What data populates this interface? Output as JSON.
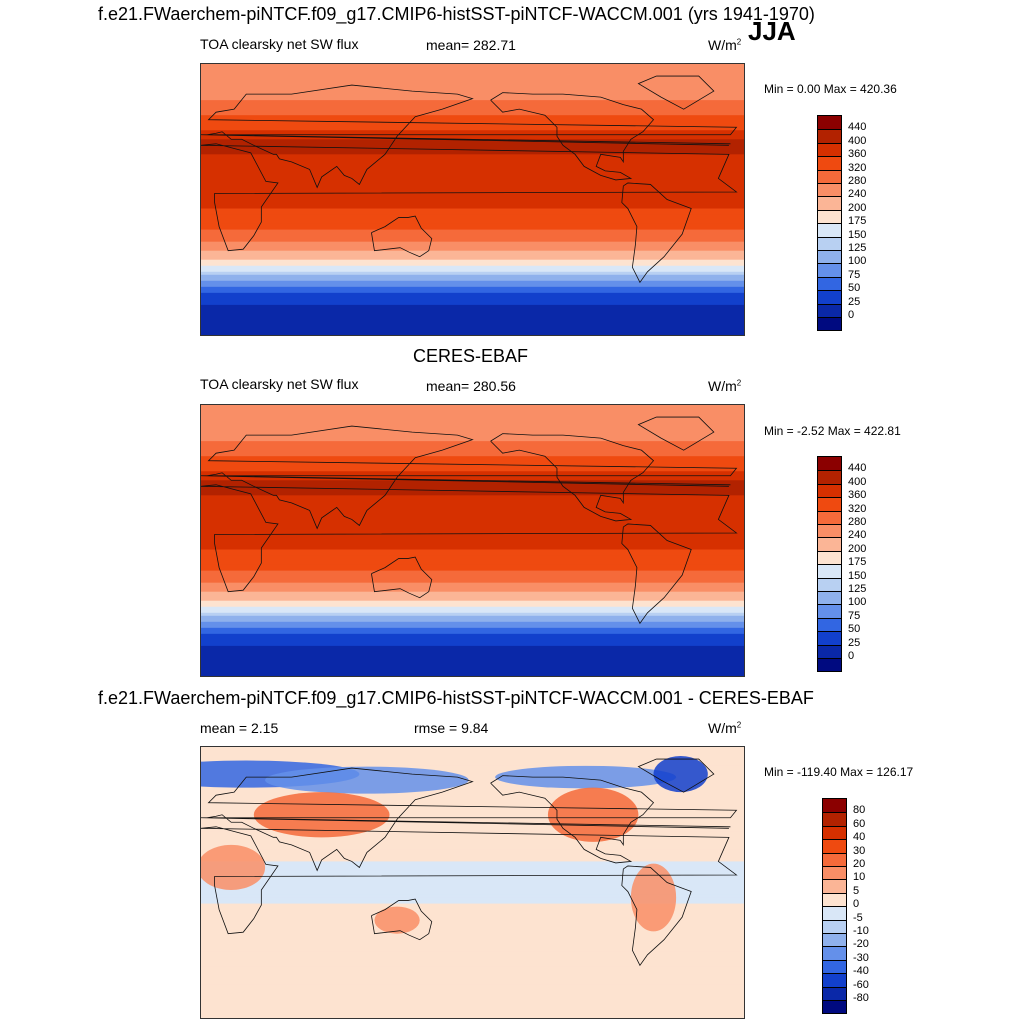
{
  "figure": {
    "title": "f.e21.FWaerchem-piNTCF.f09_g17.CMIP6-histSST-piNTCF-WACCM.001 (yrs 1941-1970)",
    "season": "JJA"
  },
  "chart_data": [
    {
      "type": "heatmap",
      "panel": "model",
      "left_label": "TOA clearsky net SW flux",
      "stat_label": "mean= 282.71",
      "units": "W/m",
      "units_sup": "2",
      "minmax": "Min =   0.00 Max = 420.36",
      "min": 0.0,
      "max": 420.36,
      "mean": 282.71,
      "colorbar_levels": [
        "440",
        "400",
        "360",
        "320",
        "280",
        "240",
        "200",
        "175",
        "150",
        "125",
        "100",
        "75",
        "50",
        "25",
        "0"
      ],
      "colorbar_colors": [
        "#8b0000",
        "#b22200",
        "#d63000",
        "#ef4a10",
        "#f56a3a",
        "#f98e66",
        "#fbb596",
        "#fde3d0",
        "#d9e7f7",
        "#b8d0f2",
        "#8fb1ec",
        "#6490ea",
        "#3266e2",
        "#1240cc",
        "#0a28a8",
        "#000a80"
      ],
      "zonal_profile_lat_deg": [
        90,
        80,
        70,
        60,
        50,
        40,
        30,
        20,
        10,
        0,
        -10,
        -20,
        -30,
        -40,
        -50,
        -60,
        -70,
        -80,
        -90
      ],
      "zonal_profile_value": [
        240,
        250,
        270,
        300,
        340,
        400,
        400,
        390,
        380,
        370,
        350,
        320,
        270,
        200,
        130,
        60,
        25,
        10,
        0
      ]
    },
    {
      "type": "heatmap",
      "panel": "obs",
      "center_title": "CERES-EBAF",
      "left_label": "TOA clearsky net SW flux",
      "stat_label": "mean= 280.56",
      "units": "W/m",
      "units_sup": "2",
      "minmax": "Min =  -2.52 Max = 422.81",
      "min": -2.52,
      "max": 422.81,
      "mean": 280.56,
      "colorbar_levels": [
        "440",
        "400",
        "360",
        "320",
        "280",
        "240",
        "200",
        "175",
        "150",
        "125",
        "100",
        "75",
        "50",
        "25",
        "0"
      ],
      "colorbar_colors": [
        "#8b0000",
        "#b22200",
        "#d63000",
        "#ef4a10",
        "#f56a3a",
        "#f98e66",
        "#fbb596",
        "#fde3d0",
        "#d9e7f7",
        "#b8d0f2",
        "#8fb1ec",
        "#6490ea",
        "#3266e2",
        "#1240cc",
        "#0a28a8",
        "#000a80"
      ],
      "zonal_profile_lat_deg": [
        90,
        80,
        70,
        60,
        50,
        40,
        30,
        20,
        10,
        0,
        -10,
        -20,
        -30,
        -40,
        -50,
        -60,
        -70,
        -80,
        -90
      ],
      "zonal_profile_value": [
        250,
        255,
        270,
        300,
        340,
        400,
        400,
        390,
        380,
        370,
        350,
        320,
        270,
        200,
        130,
        60,
        25,
        10,
        0
      ]
    },
    {
      "type": "heatmap",
      "panel": "difference",
      "center_title": "f.e21.FWaerchem-piNTCF.f09_g17.CMIP6-histSST-piNTCF-WACCM.001 - CERES-EBAF",
      "left_label": "mean =   2.15",
      "stat_label": "rmse =   9.84",
      "units": "W/m",
      "units_sup": "2",
      "minmax": "Min = -119.40 Max = 126.17",
      "min": -119.4,
      "max": 126.17,
      "mean": 2.15,
      "rmse": 9.84,
      "colorbar_levels": [
        "80",
        "60",
        "40",
        "30",
        "20",
        "10",
        "5",
        "0",
        "-5",
        "-10",
        "-20",
        "-30",
        "-40",
        "-60",
        "-80"
      ],
      "colorbar_colors": [
        "#8b0000",
        "#b22200",
        "#d63000",
        "#ef4a10",
        "#f56a3a",
        "#f98e66",
        "#fbb596",
        "#fde3d0",
        "#d9e7f7",
        "#b8d0f2",
        "#8fb1ec",
        "#6490ea",
        "#3266e2",
        "#1240cc",
        "#0a28a8",
        "#000a80"
      ]
    }
  ]
}
